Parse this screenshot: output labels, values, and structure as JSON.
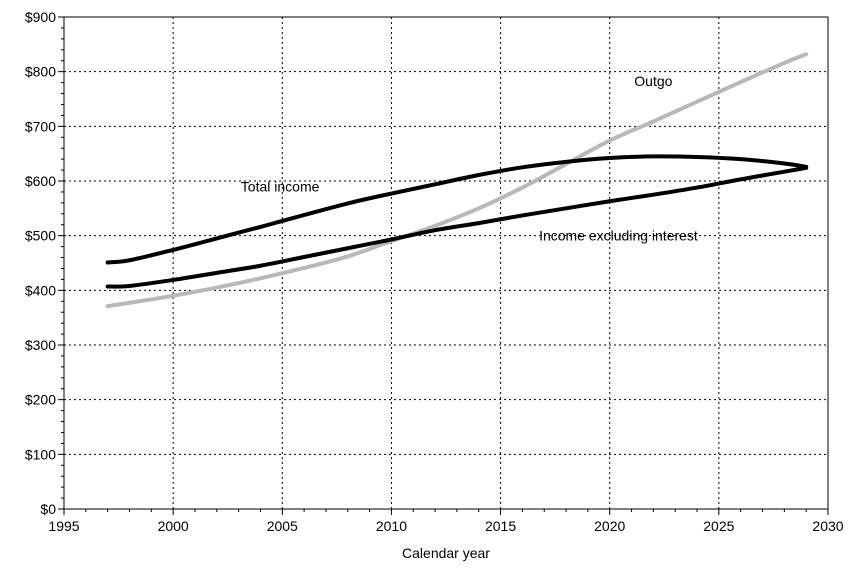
{
  "chart_data": {
    "type": "line",
    "xlabel": "Calendar year",
    "ylabel": "",
    "title": "",
    "xlim": [
      1995,
      2030
    ],
    "ylim": [
      0,
      900
    ],
    "xticks": [
      1995,
      2000,
      2005,
      2010,
      2015,
      2020,
      2025,
      2030
    ],
    "yticks": [
      0,
      100,
      200,
      300,
      400,
      500,
      600,
      700,
      800,
      900
    ],
    "xtick_labels": [
      "1995",
      "2000",
      "2005",
      "2010",
      "2015",
      "2020",
      "2025",
      "2030"
    ],
    "ytick_labels": [
      "$0",
      "$100",
      "$200",
      "$300",
      "$400",
      "$500",
      "$600",
      "$700",
      "$800",
      "$900"
    ],
    "grid": true,
    "series": [
      {
        "name": "Total income",
        "color": "#000000",
        "x": [
          1997,
          1998,
          2000,
          2002,
          2004,
          2005,
          2008,
          2010,
          2012,
          2014,
          2016,
          2018,
          2020,
          2022,
          2024,
          2026,
          2028,
          2029
        ],
        "y": [
          451,
          455,
          474,
          495,
          516,
          527,
          559,
          577,
          594,
          611,
          625,
          635,
          642,
          645,
          644,
          640,
          632,
          626
        ]
      },
      {
        "name": "Income excluding interest",
        "color": "#000000",
        "x": [
          1997,
          1998,
          2000,
          2002,
          2004,
          2006,
          2008,
          2010,
          2012,
          2014,
          2016,
          2018,
          2020,
          2022,
          2024,
          2026,
          2028,
          2029
        ],
        "y": [
          407,
          408,
          419,
          432,
          445,
          461,
          477,
          493,
          510,
          523,
          537,
          550,
          563,
          575,
          588,
          603,
          617,
          624
        ]
      },
      {
        "name": "Outgo",
        "color": "#b8b8b8",
        "x": [
          1997,
          2000,
          2002,
          2004,
          2006,
          2008,
          2010,
          2012,
          2014,
          2016,
          2018,
          2020,
          2022,
          2024,
          2026,
          2028,
          2029
        ],
        "y": [
          371,
          390,
          405,
          422,
          441,
          462,
          490,
          518,
          550,
          588,
          631,
          674,
          709,
          745,
          781,
          816,
          832
        ]
      }
    ],
    "annotations": [
      {
        "text": "Total income",
        "x": 2004.9,
        "y": 590
      },
      {
        "text": "Outgo",
        "x": 2022.0,
        "y": 783
      },
      {
        "text": "Income excluding interest",
        "x": 2020.4,
        "y": 500
      }
    ]
  }
}
